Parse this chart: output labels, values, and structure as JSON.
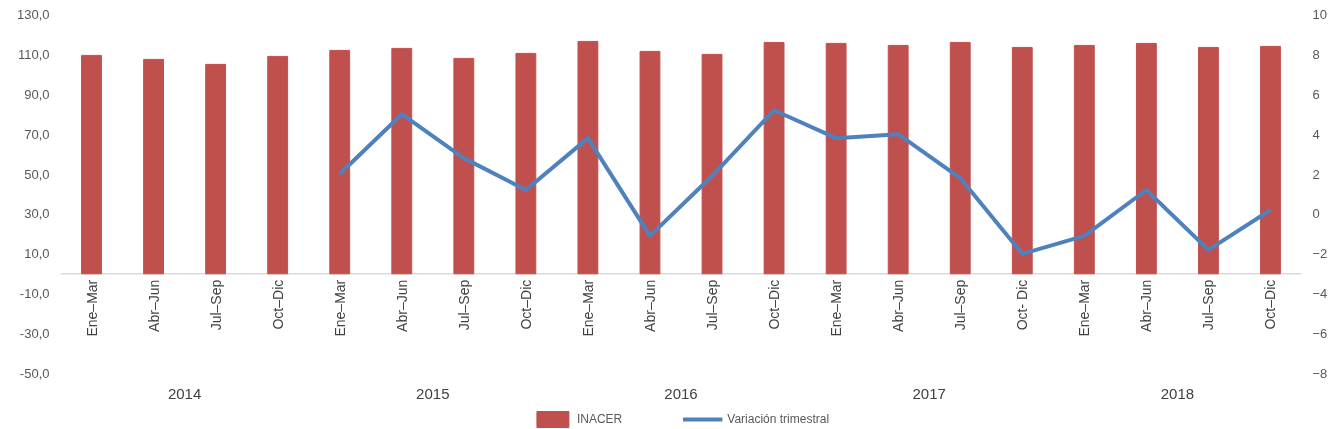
{
  "chart_data": {
    "type": "bar",
    "categories": [
      "Ene–Mar",
      "Abr–Jun",
      "Jul–Sep",
      "Oct–Dic",
      "Ene–Mar",
      "Abr–Jun",
      "Jul–Sep",
      "Oct–Dic",
      "Ene–Mar",
      "Abr–Jun",
      "Jul–Sep",
      "Oct–Dic",
      "Ene–Mar",
      "Abr–Jun",
      "Jul–Sep",
      "Oct- Dic",
      "Ene–Mar",
      "Abr–Jun",
      "Jul–Sep",
      "Oct–Dic"
    ],
    "annotations": [
      "2014",
      "2015",
      "2016",
      "2017",
      "2018"
    ],
    "series": [
      {
        "name": "INACER",
        "color": "#c0504d",
        "values": [
          109.5,
          107.5,
          105,
          109,
          112,
          113,
          108,
          110.5,
          116.5,
          111.5,
          110,
          116,
          115.5,
          114.5,
          116,
          113.5,
          114.5,
          115.5,
          113.5,
          114
        ]
      },
      {
        "name": "Variación trimestral",
        "type": "line",
        "axis": "y2",
        "color": "#4f81bd",
        "values": [
          null,
          null,
          null,
          null,
          2.0,
          5.0,
          2.8,
          1.2,
          3.8,
          -1.1,
          1.9,
          5.2,
          3.8,
          4.0,
          1.8,
          -2.0,
          -1.1,
          1.2,
          -1.8,
          0.2
        ]
      }
    ],
    "ylim": [
      -50,
      130
    ],
    "yticks": [
      {
        "value": -50,
        "label": "-50,0"
      },
      {
        "value": -30,
        "label": "-30,0"
      },
      {
        "value": -10,
        "label": "-10,0"
      },
      {
        "value": 10,
        "label": "10,0"
      },
      {
        "value": 30,
        "label": "30,0"
      },
      {
        "value": 50,
        "label": "50,0"
      },
      {
        "value": 70,
        "label": "70,0"
      },
      {
        "value": 90,
        "label": "90,0"
      },
      {
        "value": 110,
        "label": "110,0"
      },
      {
        "value": 130,
        "label": "130,0"
      }
    ],
    "y2lim": [
      -8,
      10
    ],
    "y2ticks": [
      -8,
      -6,
      -4,
      -2,
      0,
      2,
      4,
      6,
      8,
      10
    ],
    "grid": false,
    "legend": "bottom"
  }
}
